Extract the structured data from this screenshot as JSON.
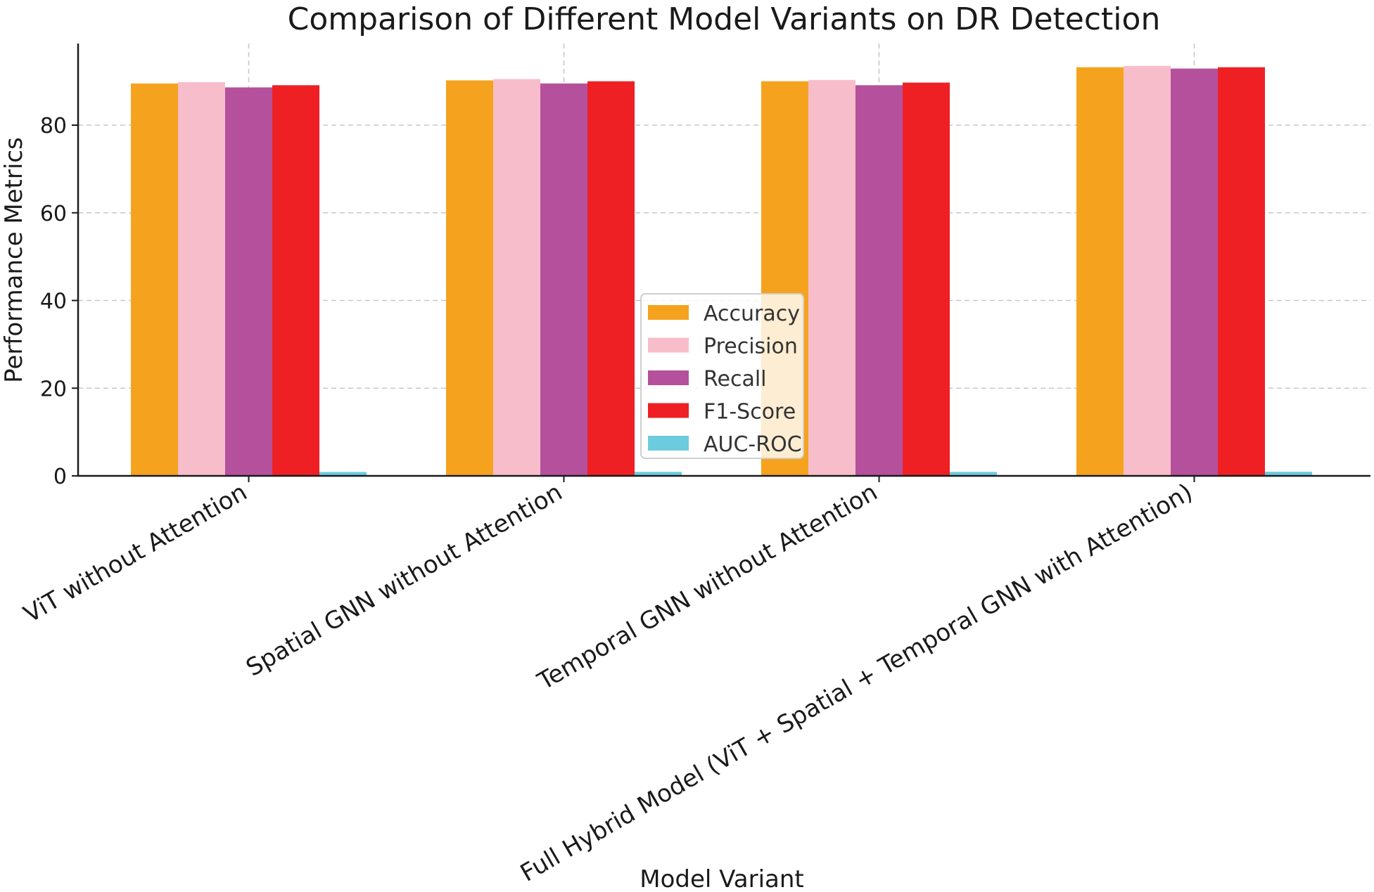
{
  "chart_data": {
    "type": "bar",
    "title": "Comparison of Different Model Variants on DR Detection",
    "xlabel": "Model Variant",
    "ylabel": "Performance Metrics",
    "ylim": [
      0,
      100
    ],
    "yticks": [
      0,
      20,
      40,
      60,
      80
    ],
    "grid": true,
    "legend_position": "center",
    "categories": [
      "ViT without Attention",
      "Spatial GNN without Attention",
      "Temporal GNN without Attention",
      "Full Hybrid Model (ViT + Spatial + Temporal GNN with Attention)"
    ],
    "series": [
      {
        "name": "Accuracy",
        "color": "#F5A31E",
        "values": [
          89.5,
          90.2,
          90.0,
          93.2
        ]
      },
      {
        "name": "Precision",
        "color": "#F8BDCB",
        "values": [
          89.8,
          90.5,
          90.3,
          93.5
        ]
      },
      {
        "name": "Recall",
        "color": "#B5509C",
        "values": [
          88.6,
          89.5,
          89.1,
          92.9
        ]
      },
      {
        "name": "F1-Score",
        "color": "#EE2024",
        "values": [
          89.1,
          90.0,
          89.7,
          93.2
        ]
      },
      {
        "name": "AUC-ROC",
        "color": "#6CCCDD",
        "values": [
          0.9,
          0.92,
          0.91,
          0.95
        ]
      }
    ]
  }
}
